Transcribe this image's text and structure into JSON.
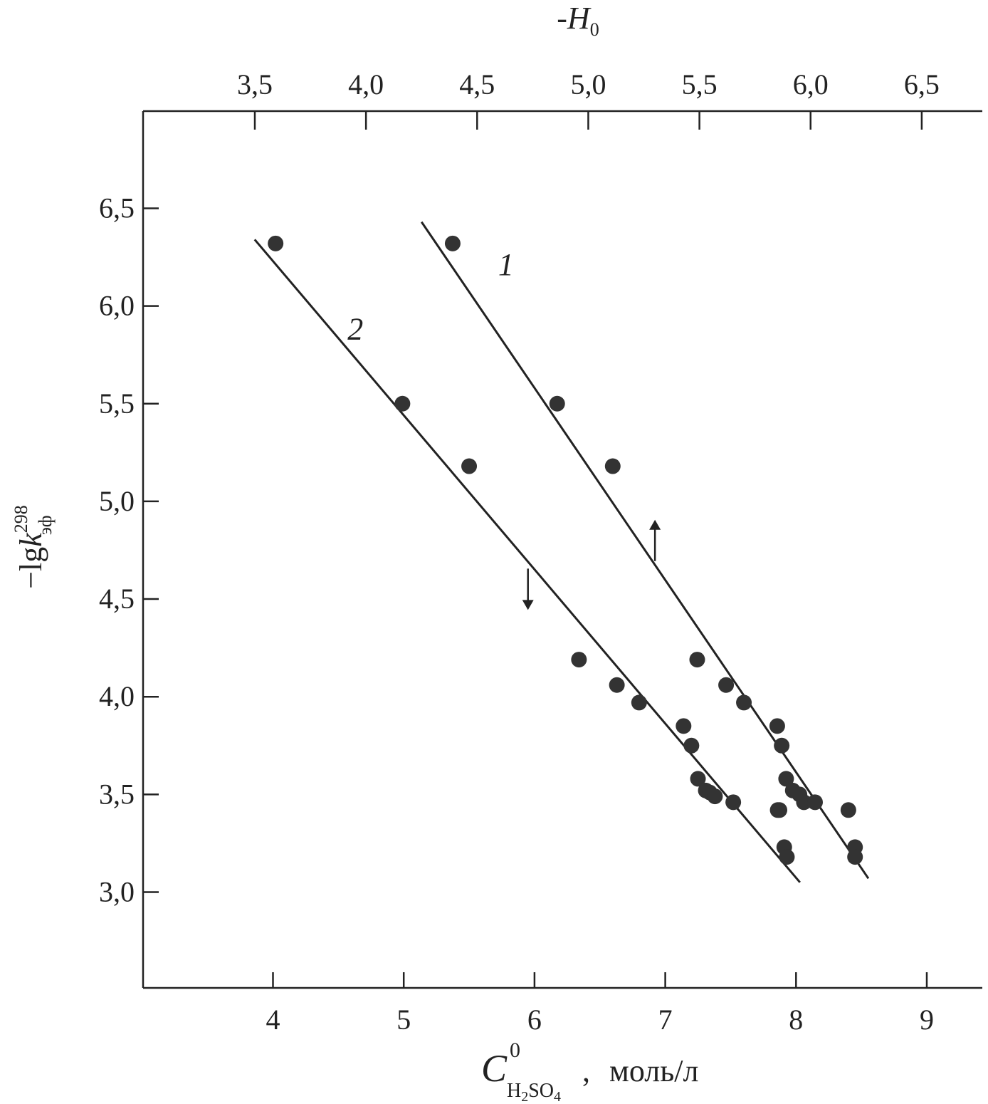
{
  "colors": {
    "ink": "#222222",
    "background": "#ffffff"
  },
  "chart_data": {
    "type": "scatter",
    "title": "",
    "grid": false,
    "xlabel": {
      "symbol": "C",
      "superscript": "0",
      "subscript_parts": [
        {
          "text": "H",
          "lowered": false
        },
        {
          "text": "2",
          "lowered": true
        },
        {
          "text": "SO",
          "lowered": false
        },
        {
          "text": "4",
          "lowered": true
        }
      ],
      "separator": ",",
      "unit": "моль/л"
    },
    "x2label": {
      "text": "-H",
      "subscript": "0"
    },
    "ylabel": {
      "prefix": "−lg",
      "symbol": "k",
      "superscript": "298",
      "subscript": "эф"
    },
    "xlim": [
      3,
      9.4
    ],
    "ylim": [
      2.5,
      7.0
    ],
    "x2lim": [
      3.0,
      7.1
    ],
    "xticks": [
      4,
      5,
      6,
      7,
      8,
      9
    ],
    "xtick_labels": [
      "4",
      "5",
      "6",
      "7",
      "8",
      "9"
    ],
    "x2ticks": [
      3.5,
      4.0,
      4.5,
      5.0,
      5.5,
      6.0,
      6.5
    ],
    "x2tick_labels": [
      "3,5",
      "4,0",
      "4,5",
      "5,0",
      "5,5",
      "6,0",
      "6,5"
    ],
    "yticks": [
      3.0,
      3.5,
      4.0,
      4.5,
      5.0,
      5.5,
      6.0,
      6.5
    ],
    "ytick_labels": [
      "3,0",
      "3,5",
      "4,0",
      "4,5",
      "5,0",
      "5,5",
      "6,0",
      "6,5"
    ],
    "series": [
      {
        "name": "1",
        "axis": "-H0 (top)",
        "x": [
          4.39,
          4.86,
          5.11,
          5.49,
          5.62,
          5.7,
          5.85,
          5.87,
          5.89,
          5.92,
          5.95,
          5.97,
          6.02,
          5.86,
          6.17,
          6.2,
          6.2
        ],
        "y": [
          6.32,
          5.5,
          5.18,
          4.19,
          4.06,
          3.97,
          3.85,
          3.75,
          3.58,
          3.52,
          3.5,
          3.46,
          3.46,
          3.42,
          3.42,
          3.23,
          3.18
        ],
        "fit_line": {
          "x": [
            4.25,
            6.26
          ],
          "y": [
            6.43,
            3.07
          ]
        },
        "label_position": [
          4.63,
          6.21
        ],
        "arrow": {
          "at": [
            5.3,
            4.8
          ],
          "direction": "up"
        }
      },
      {
        "name": "2",
        "axis": "C⁰ (bottom)",
        "x": [
          4.02,
          4.99,
          5.5,
          6.34,
          6.63,
          6.8,
          7.14,
          7.2,
          7.25,
          7.31,
          7.34,
          7.38,
          7.52,
          7.86,
          7.91,
          7.93
        ],
        "y": [
          6.32,
          5.5,
          5.18,
          4.19,
          4.06,
          3.97,
          3.85,
          3.75,
          3.58,
          3.52,
          3.51,
          3.49,
          3.46,
          3.42,
          3.23,
          3.18
        ],
        "fit_line": {
          "x": [
            3.86,
            8.03
          ],
          "y": [
            6.34,
            3.05
          ]
        },
        "label_position": [
          4.63,
          5.88
        ],
        "arrow": {
          "at": [
            5.95,
            4.55
          ],
          "direction": "down"
        }
      }
    ]
  }
}
